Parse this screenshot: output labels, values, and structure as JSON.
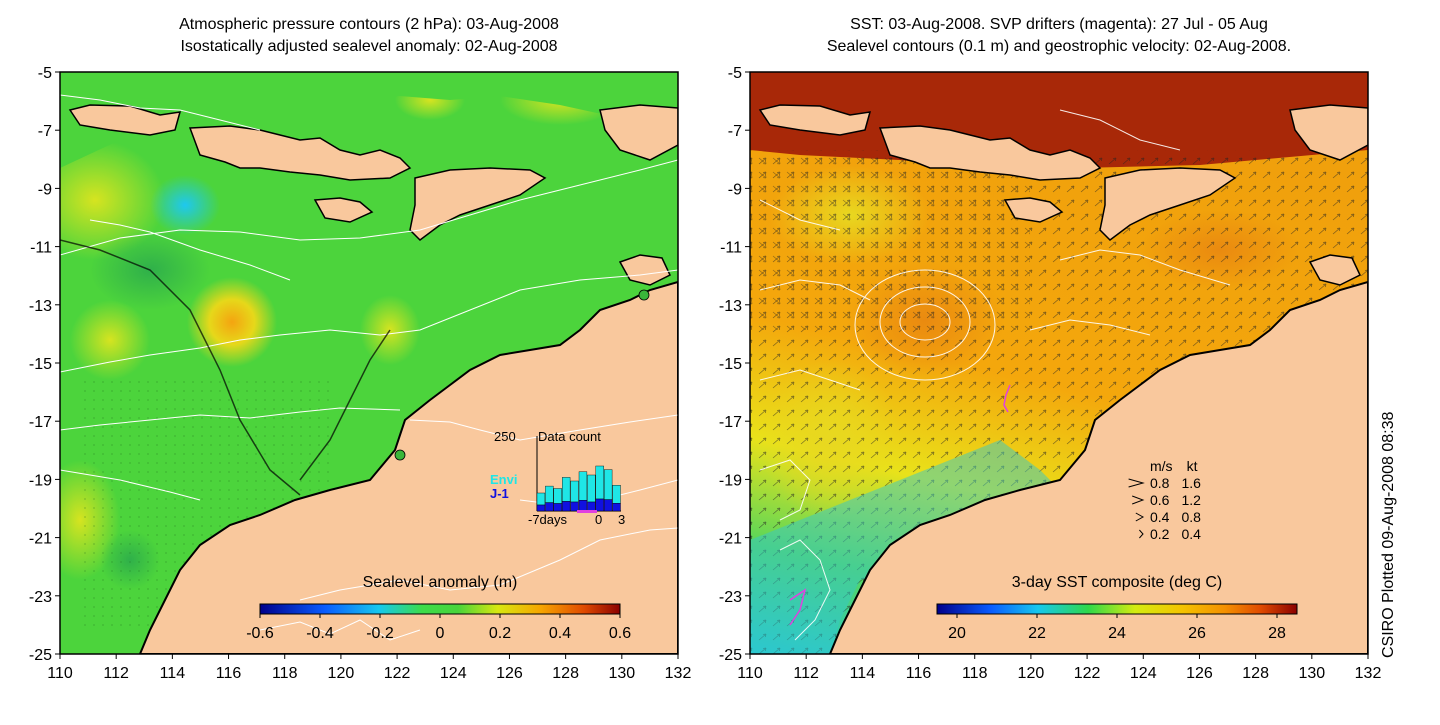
{
  "left_panel": {
    "title_line1": "Atmospheric pressure contours (2 hPa): 03-Aug-2008",
    "title_line2": "Isostatically adjusted sealevel anomaly: 02-Aug-2008",
    "colorbar": {
      "label": "Sealevel anomaly (m)",
      "ticks": [
        "-0.6",
        "-0.4",
        "-0.2",
        "0",
        "0.2",
        "0.4",
        "0.6"
      ],
      "range": [
        -0.6,
        0.6
      ]
    },
    "inset": {
      "title": "Data count",
      "ymax_label": "250",
      "legend": [
        {
          "label": "Envi",
          "color": "#1fe6e6"
        },
        {
          "label": "J-1",
          "color": "#1010e0"
        }
      ],
      "x_labels": [
        "-7days",
        "0",
        "3"
      ],
      "envi_counts": [
        40,
        55,
        50,
        80,
        70,
        95,
        90,
        110,
        100,
        60
      ],
      "j1_counts": [
        20,
        28,
        25,
        32,
        30,
        36,
        30,
        40,
        38,
        26
      ],
      "ymax": 250
    }
  },
  "right_panel": {
    "title_line1": "SST: 03-Aug-2008. SVP drifters (magenta): 27 Jul - 05 Aug",
    "title_line2": "Sealevel contours (0.1 m) and geostrophic velocity: 02-Aug-2008.",
    "colorbar": {
      "label": "3-day SST composite (deg C)",
      "ticks": [
        "20",
        "22",
        "24",
        "26",
        "28"
      ],
      "range": [
        19.5,
        28.5
      ]
    },
    "velocity_legend": {
      "header_ms": "m/s",
      "header_kt": "kt",
      "rows": [
        {
          "ms": "0.8",
          "kt": "1.6"
        },
        {
          "ms": "0.6",
          "kt": "1.2"
        },
        {
          "ms": "0.4",
          "kt": "0.8"
        },
        {
          "ms": "0.2",
          "kt": "0.4"
        }
      ]
    }
  },
  "axes": {
    "lon_ticks": [
      "110",
      "112",
      "114",
      "116",
      "118",
      "120",
      "122",
      "124",
      "126",
      "128",
      "130",
      "132"
    ],
    "lat_ticks": [
      "-5",
      "-7",
      "-9",
      "-11",
      "-13",
      "-15",
      "-17",
      "-19",
      "-21",
      "-23",
      "-25"
    ],
    "lon_range": [
      110,
      132
    ],
    "lat_range": [
      -25,
      -5
    ]
  },
  "credit": "CSIRO Plotted 09-Aug-2008 08:38",
  "colors": {
    "land": "#f9c89d",
    "coast": "#000000",
    "contour": "#ffffff",
    "drifter": "#e040e0"
  }
}
